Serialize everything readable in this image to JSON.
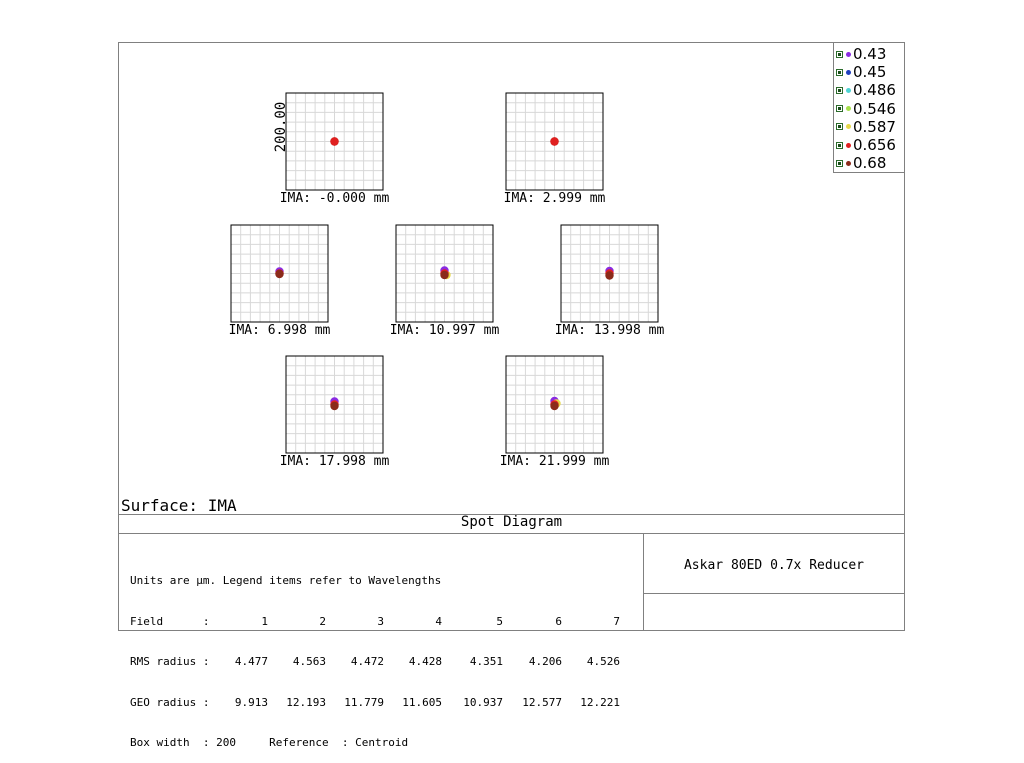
{
  "chart_data": {
    "type": "scatter",
    "title": "Spot Diagram",
    "surface": "Surface: IMA",
    "y_axis_label": "200.00",
    "fields": [
      {
        "label": "IMA: -0.000 mm",
        "spots": [
          {
            "wl": "0.68",
            "dx": 0,
            "dy": 0
          },
          {
            "wl": "0.656",
            "dx": 0,
            "dy": 0
          }
        ]
      },
      {
        "label": "IMA: 2.999 mm",
        "spots": [
          {
            "wl": "0.68",
            "dx": 0,
            "dy": 0
          },
          {
            "wl": "0.656",
            "dx": 0,
            "dy": 0
          }
        ]
      },
      {
        "label": "IMA: 6.998 mm",
        "spots": [
          {
            "wl": "0.43",
            "dx": 0,
            "dy": 4
          },
          {
            "wl": "0.656",
            "dx": 0,
            "dy": 0
          },
          {
            "wl": "0.68",
            "dx": 0,
            "dy": -1
          }
        ]
      },
      {
        "label": "IMA: 10.997 mm",
        "spots": [
          {
            "wl": "0.587",
            "dx": 4,
            "dy": -3
          },
          {
            "wl": "0.43",
            "dx": 0,
            "dy": 6
          },
          {
            "wl": "0.656",
            "dx": 0,
            "dy": 0
          },
          {
            "wl": "0.68",
            "dx": 0,
            "dy": -3
          }
        ]
      },
      {
        "label": "IMA: 13.998 mm",
        "spots": [
          {
            "wl": "0.43",
            "dx": 0,
            "dy": 5
          },
          {
            "wl": "0.656",
            "dx": 0,
            "dy": 0
          },
          {
            "wl": "0.68",
            "dx": 0,
            "dy": -4
          }
        ]
      },
      {
        "label": "IMA: 17.998 mm",
        "spots": [
          {
            "wl": "0.43",
            "dx": 0,
            "dy": 6
          },
          {
            "wl": "0.656",
            "dx": 0,
            "dy": 0
          },
          {
            "wl": "0.68",
            "dx": 0,
            "dy": -3
          }
        ]
      },
      {
        "label": "IMA: 21.999 mm",
        "spots": [
          {
            "wl": "0.43",
            "dx": 0,
            "dy": 7
          },
          {
            "wl": "0.587",
            "dx": 4,
            "dy": 2
          },
          {
            "wl": "0.656",
            "dx": 0,
            "dy": 0
          },
          {
            "wl": "0.68",
            "dx": 0,
            "dy": -3
          }
        ]
      }
    ],
    "box_width": "200",
    "grid": true,
    "legend_position": "top-right",
    "legend": [
      {
        "label": "0.43",
        "color": "#8a2be2"
      },
      {
        "label": "0.45",
        "color": "#1f3fbf"
      },
      {
        "label": "0.486",
        "color": "#4fd4d4"
      },
      {
        "label": "0.546",
        "color": "#a6e04a"
      },
      {
        "label": "0.587",
        "color": "#e6d84a"
      },
      {
        "label": "0.656",
        "color": "#e02020"
      },
      {
        "label": "0.68",
        "color": "#8b2a1a"
      }
    ]
  },
  "info": {
    "line1": "Units are µm. Legend items refer to Wavelengths",
    "field_label": "Field      :",
    "fields": [
      "1",
      "2",
      "3",
      "4",
      "5",
      "6",
      "7"
    ],
    "rms_label": "RMS radius :",
    "rms": [
      "4.477",
      "4.563",
      "4.472",
      "4.428",
      "4.351",
      "4.206",
      "4.526"
    ],
    "geo_label": "GEO radius :",
    "geo": [
      "9.913",
      "12.193",
      "11.779",
      "11.605",
      "10.937",
      "12.577",
      "12.221"
    ],
    "box_line": "Box width  : 200     Reference  : Centroid"
  },
  "lens_name": "Askar 80ED 0.7x Reducer"
}
